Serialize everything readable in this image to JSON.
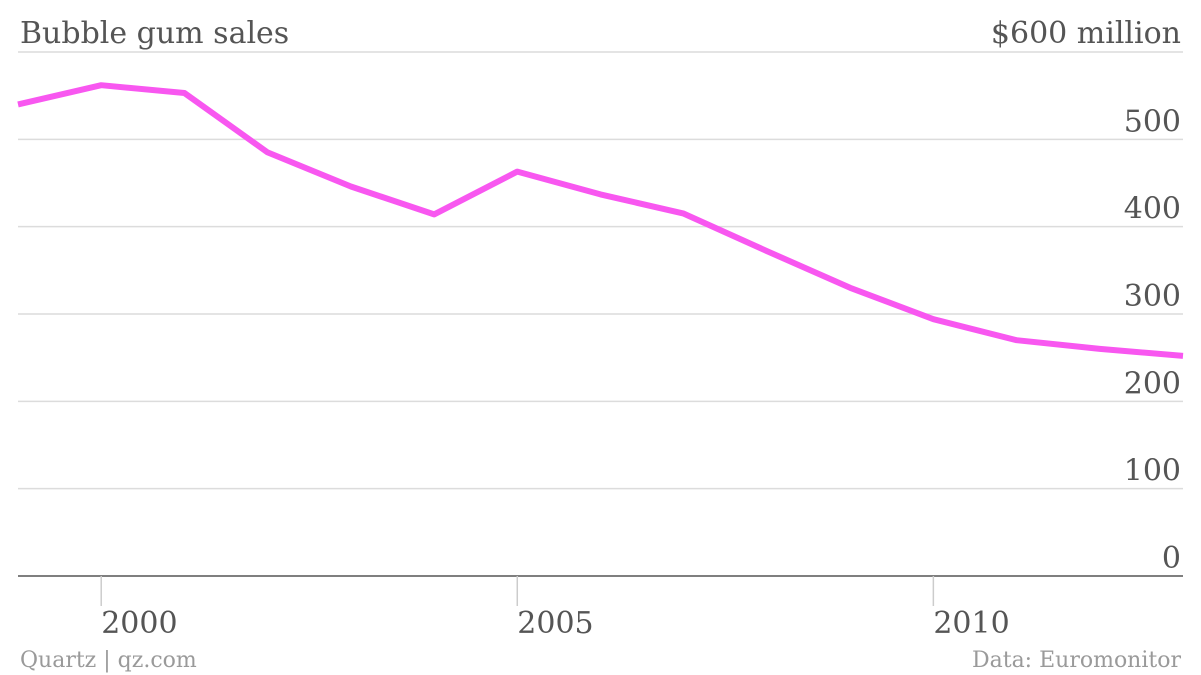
{
  "chart_data": {
    "type": "line",
    "title": "Bubble gum sales",
    "ylabel": "$600 million",
    "xlabel": "",
    "x": [
      1999,
      2000,
      2001,
      2002,
      2003,
      2004,
      2005,
      2006,
      2007,
      2008,
      2009,
      2010,
      2011,
      2012,
      2013
    ],
    "series": [
      {
        "values": [
          540,
          562,
          553,
          485,
          446,
          414,
          463,
          437,
          415,
          372,
          330,
          294,
          270,
          260,
          252
        ]
      }
    ],
    "xlim": [
      1999,
      2013
    ],
    "ylim": [
      0,
      600
    ],
    "x_ticks": [
      2000,
      2005,
      2010
    ],
    "x_tick_labels": [
      "2000",
      "2005",
      "2010"
    ],
    "y_ticks": [
      0,
      100,
      200,
      300,
      400,
      500,
      600
    ],
    "y_tick_labels": [
      "0",
      "100",
      "200",
      "300",
      "400",
      "500",
      "$600 million"
    ],
    "grid": true,
    "line_color": "#f857f0"
  },
  "footer": {
    "credit": "Quartz | qz.com",
    "source": "Data: Euromonitor"
  }
}
